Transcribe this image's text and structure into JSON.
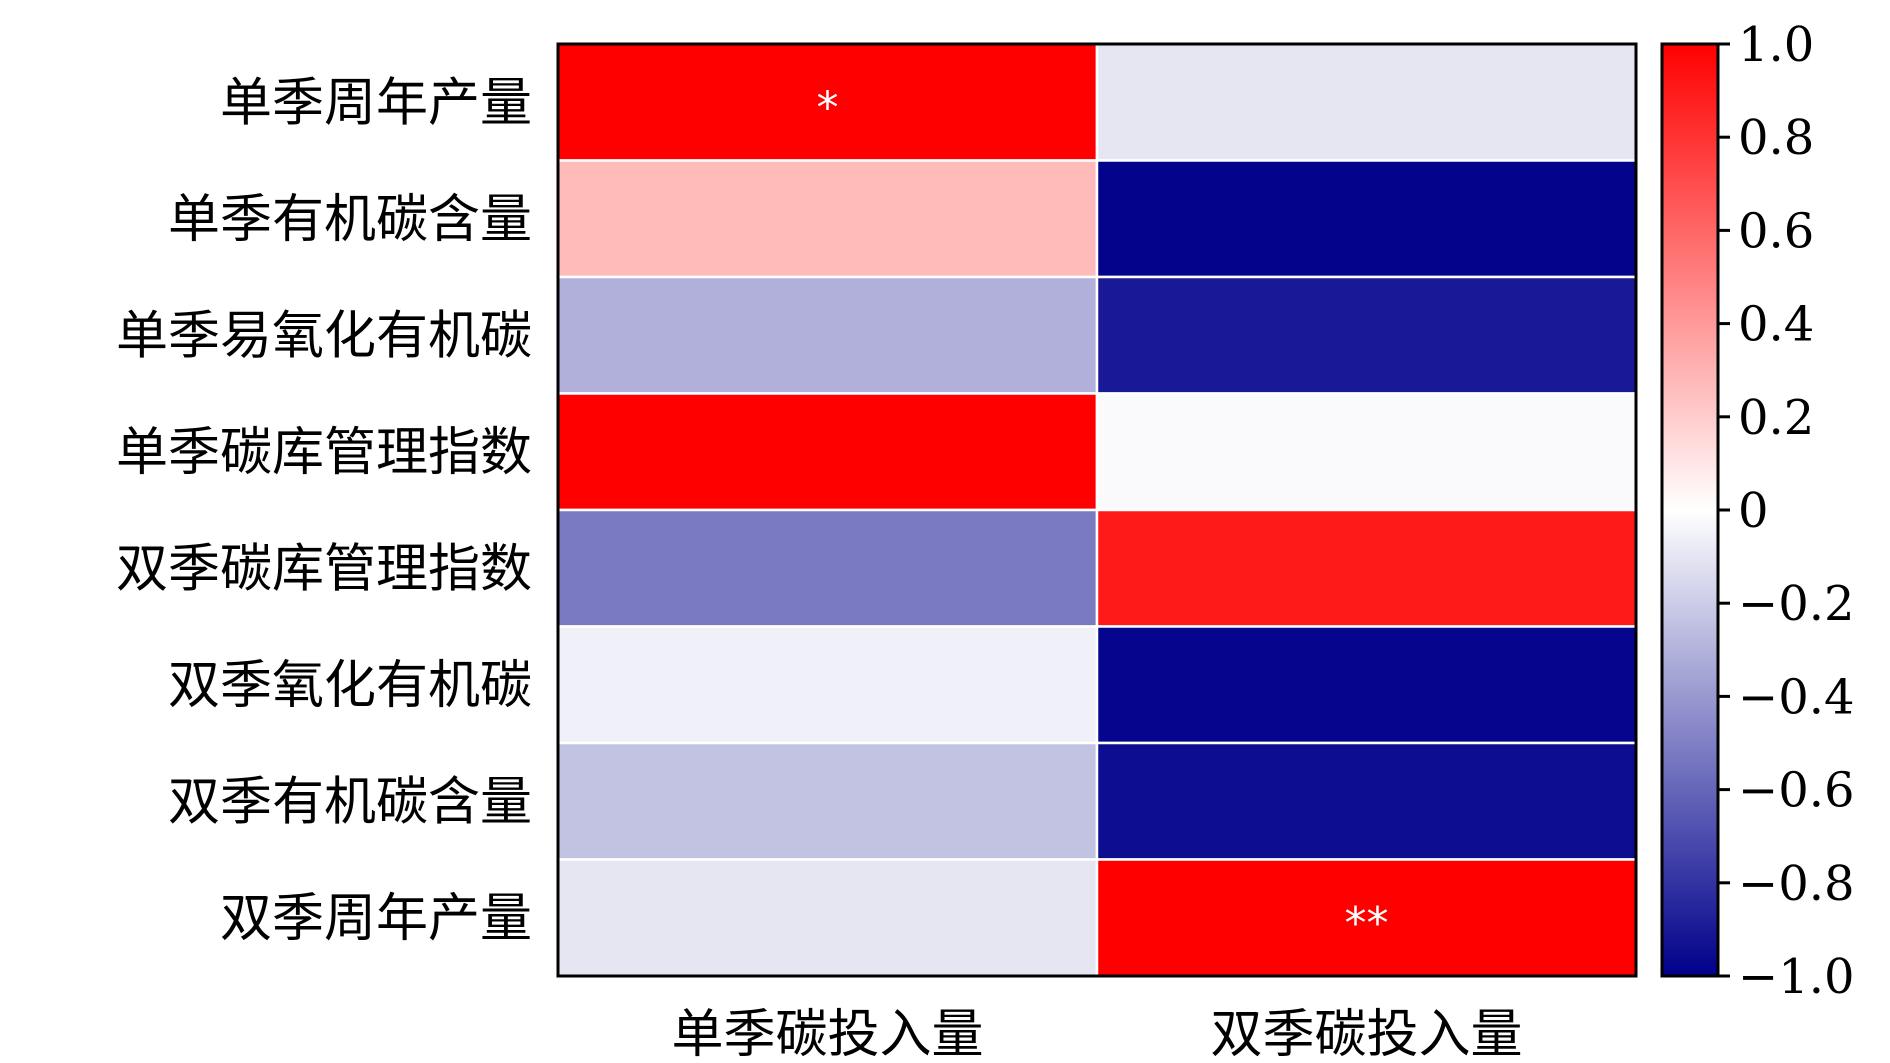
{
  "chart_data": {
    "type": "heatmap",
    "rows": [
      "单季周年产量",
      "单季有机碳含量",
      "单季易氧化有机碳",
      "单季碳库管理指数",
      "双季碳库管理指数",
      "双季氧化有机碳",
      "双季有机碳含量",
      "双季周年产量"
    ],
    "columns": [
      "单季碳投入量",
      "双季碳投入量"
    ],
    "values": [
      [
        1.0,
        -0.1
      ],
      [
        0.27,
        -0.99
      ],
      [
        -0.31,
        -0.9
      ],
      [
        1.0,
        -0.02
      ],
      [
        -0.52,
        0.9
      ],
      [
        -0.06,
        -0.98
      ],
      [
        -0.24,
        -0.95
      ],
      [
        -0.1,
        1.0
      ]
    ],
    "annotations": [
      [
        "*",
        ""
      ],
      [
        "",
        ""
      ],
      [
        "",
        ""
      ],
      [
        "",
        ""
      ],
      [
        "",
        ""
      ],
      [
        "",
        ""
      ],
      [
        "",
        ""
      ],
      [
        "",
        "**"
      ]
    ],
    "colorbar": {
      "range": [
        -1.0,
        1.0
      ],
      "ticks": [
        1.0,
        0.8,
        0.6,
        0.4,
        0.2,
        0,
        -0.2,
        -0.4,
        -0.6,
        -0.8,
        -1.0
      ],
      "tick_labels": [
        "1.0",
        "0.8",
        "0.6",
        "0.4",
        "0.2",
        "0",
        "−0.2",
        "−0.4",
        "−0.6",
        "−0.8",
        "−1.0"
      ],
      "colormap": [
        "#00008b",
        "#ffffff",
        "#ff0000"
      ]
    }
  }
}
